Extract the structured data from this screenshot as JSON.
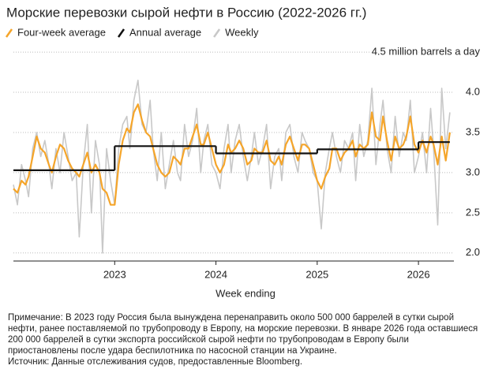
{
  "chart_data": {
    "type": "line",
    "title": "Морские перевозки сырой нефти в Россию (2022-2026 гг.)",
    "x_label": "Week ending",
    "x": [
      2022.0,
      2022.04,
      2022.08,
      2022.12,
      2022.15,
      2022.19,
      2022.23,
      2022.27,
      2022.31,
      2022.35,
      2022.38,
      2022.42,
      2022.46,
      2022.5,
      2022.54,
      2022.58,
      2022.62,
      2022.65,
      2022.69,
      2022.73,
      2022.77,
      2022.81,
      2022.85,
      2022.88,
      2022.92,
      2022.96,
      2023.0,
      2023.04,
      2023.08,
      2023.12,
      2023.15,
      2023.19,
      2023.23,
      2023.27,
      2023.31,
      2023.35,
      2023.38,
      2023.42,
      2023.46,
      2023.5,
      2023.54,
      2023.58,
      2023.62,
      2023.65,
      2023.69,
      2023.73,
      2023.77,
      2023.81,
      2023.85,
      2023.88,
      2023.92,
      2023.96,
      2024.0,
      2024.04,
      2024.08,
      2024.12,
      2024.15,
      2024.19,
      2024.23,
      2024.27,
      2024.31,
      2024.35,
      2024.38,
      2024.42,
      2024.46,
      2024.5,
      2024.54,
      2024.58,
      2024.62,
      2024.65,
      2024.69,
      2024.73,
      2024.77,
      2024.81,
      2024.85,
      2024.88,
      2024.92,
      2024.96,
      2025.0,
      2025.04,
      2025.08,
      2025.12,
      2025.15,
      2025.19,
      2025.23,
      2025.27,
      2025.31,
      2025.35,
      2025.38,
      2025.42,
      2025.46,
      2025.5,
      2025.54,
      2025.58,
      2025.62,
      2025.65,
      2025.69,
      2025.73,
      2025.77,
      2025.81,
      2025.85,
      2025.88,
      2025.92,
      2025.96,
      2026.0,
      2026.04,
      2026.08,
      2026.12,
      2026.15,
      2026.19,
      2026.23,
      2026.27,
      2026.31
    ],
    "series": [
      {
        "name": "Four-week average",
        "color": "#f5a52a",
        "values": [
          2.8,
          2.75,
          2.9,
          2.85,
          2.95,
          3.2,
          3.45,
          3.3,
          3.25,
          3.1,
          3.0,
          3.2,
          3.35,
          3.3,
          3.15,
          3.05,
          3.0,
          2.95,
          3.1,
          3.25,
          3.0,
          3.1,
          3.0,
          2.8,
          2.75,
          2.6,
          2.6,
          3.1,
          3.4,
          3.55,
          3.5,
          3.75,
          3.85,
          3.65,
          3.5,
          3.45,
          3.3,
          3.1,
          3.0,
          2.95,
          3.0,
          3.2,
          3.15,
          3.1,
          3.3,
          3.3,
          3.45,
          3.6,
          3.35,
          3.35,
          3.5,
          3.3,
          3.1,
          3.0,
          3.1,
          3.35,
          3.25,
          3.3,
          3.4,
          3.3,
          3.1,
          3.15,
          3.3,
          3.25,
          3.25,
          3.4,
          3.15,
          3.1,
          3.2,
          3.1,
          3.35,
          3.45,
          3.3,
          3.15,
          3.35,
          3.35,
          3.3,
          3.1,
          2.9,
          2.8,
          2.95,
          3.05,
          3.3,
          3.3,
          3.15,
          3.25,
          3.3,
          3.4,
          3.2,
          3.35,
          3.3,
          3.35,
          3.75,
          3.45,
          3.4,
          3.7,
          3.4,
          3.15,
          3.45,
          3.3,
          3.35,
          3.45,
          3.7,
          3.35,
          3.25,
          3.4,
          3.25,
          3.45,
          3.35,
          3.1,
          3.45,
          3.15,
          3.5
        ]
      },
      {
        "name": "Annual average",
        "color": "#111111",
        "x": [
          2022.0,
          2023.0,
          2024.0,
          2025.0,
          2026.0
        ],
        "values": [
          3.03,
          3.33,
          3.24,
          3.29,
          3.38
        ]
      },
      {
        "name": "Weekly",
        "color": "#c8c8c8",
        "values": [
          2.85,
          2.6,
          3.1,
          2.9,
          2.7,
          3.3,
          3.5,
          3.2,
          3.4,
          3.1,
          2.8,
          3.3,
          3.0,
          3.5,
          3.2,
          2.9,
          3.0,
          2.2,
          3.1,
          3.6,
          2.5,
          3.4,
          3.1,
          2.0,
          3.3,
          2.9,
          2.6,
          3.3,
          3.6,
          3.7,
          3.3,
          3.9,
          4.15,
          3.6,
          3.5,
          3.9,
          3.3,
          2.9,
          3.5,
          2.8,
          3.1,
          3.4,
          3.0,
          2.9,
          3.6,
          3.2,
          3.4,
          3.8,
          3.0,
          3.4,
          3.6,
          3.1,
          3.0,
          2.8,
          3.3,
          3.6,
          3.0,
          3.4,
          3.6,
          3.2,
          2.9,
          3.2,
          3.5,
          3.1,
          3.3,
          3.6,
          2.8,
          3.2,
          3.3,
          2.9,
          3.5,
          3.6,
          3.2,
          3.0,
          3.5,
          3.4,
          3.3,
          3.0,
          2.9,
          2.3,
          3.0,
          3.3,
          3.5,
          3.2,
          3.0,
          3.4,
          3.3,
          3.5,
          2.9,
          3.6,
          3.2,
          3.4,
          4.05,
          3.1,
          3.6,
          3.9,
          3.3,
          3.0,
          3.7,
          3.2,
          3.5,
          3.4,
          3.9,
          3.0,
          3.2,
          3.5,
          3.0,
          3.8,
          3.3,
          2.35,
          4.05,
          3.3,
          3.75
        ]
      }
    ],
    "xlim": [
      2022.0,
      2026.35
    ],
    "xticks": [
      2023,
      2024,
      2025,
      2026
    ],
    "ylim": [
      1.9,
      4.55
    ],
    "yticks": [
      {
        "value": 2.0,
        "label": "2.0"
      },
      2.5,
      {
        "value": 3.0,
        "label": "3.0"
      },
      3.5,
      {
        "value": 4.0,
        "label": "4.0"
      },
      {
        "value": 4.5,
        "label": "4.5 million barrels a day"
      }
    ],
    "grid": true,
    "note": "Примечание: В 2023 году Россия была вынуждена перенаправить около 500 000 баррелей в сутки сырой нефти, ранее поставляемой по трубопроводу в Европу, на морские перевозки. В январе 2026 года оставшиеся 200 000 баррелей в сутки экспорта российской сырой нефти по трубопроводам в Европу были приостановлены после удара беспилотника по насосной станции на Украине.",
    "source": "Источник: Данные отслеживания судов, предоставленные Bloomberg."
  }
}
